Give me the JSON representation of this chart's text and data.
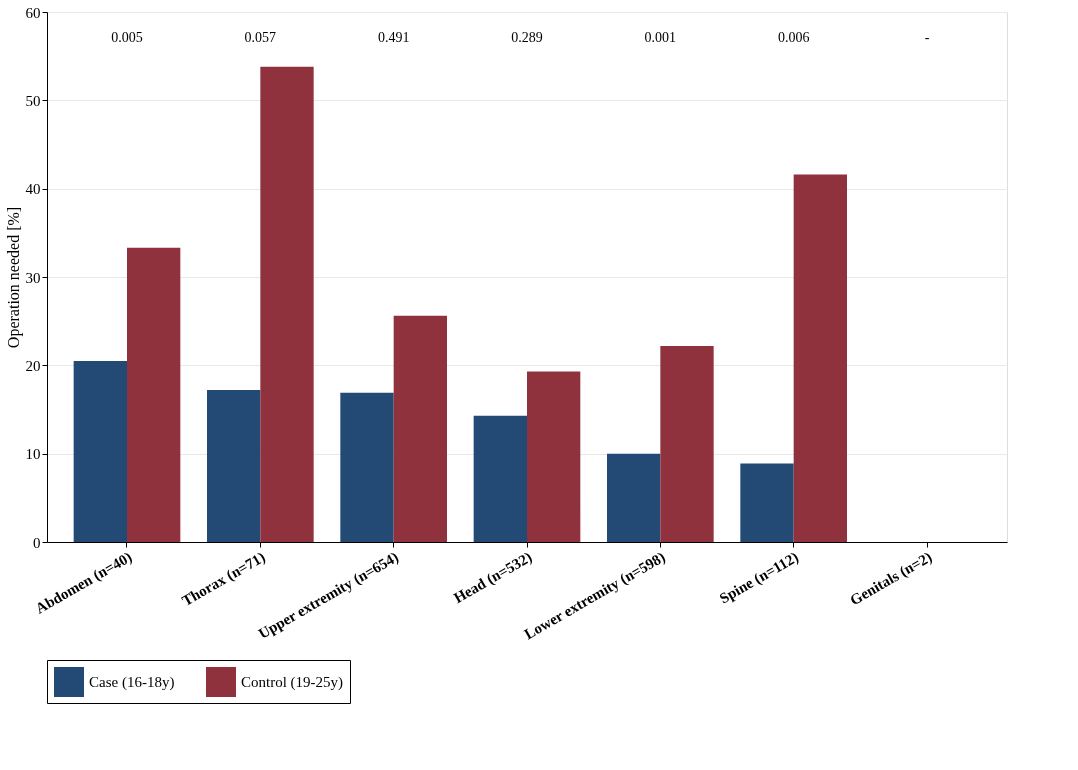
{
  "chart_data": {
    "type": "bar",
    "ylabel": "Operation needed [%]",
    "categories": [
      "Abdomen (n=40)",
      "Thorax (n=71)",
      "Upper extremity (n=654)",
      "Head (n=532)",
      "Lower extremity (n=598)",
      "Spine (n=112)",
      "Genitals (n=2)"
    ],
    "series": [
      {
        "name": "Case (16-18y)",
        "color": "#234a74",
        "values": [
          20.5,
          17.2,
          16.9,
          14.3,
          10.0,
          8.9,
          0
        ]
      },
      {
        "name": "Control (19-25y)",
        "color": "#90323d",
        "values": [
          33.3,
          53.8,
          25.6,
          19.3,
          22.2,
          41.6,
          0
        ]
      }
    ],
    "ylim": [
      0,
      60
    ],
    "yticks": [
      0,
      10,
      20,
      30,
      40,
      50,
      60
    ],
    "grid": "y",
    "legend": "bottom",
    "annotations": [
      "0.005",
      "0.057",
      "0.491",
      "0.289",
      "0.001",
      "0.006",
      "-"
    ]
  }
}
